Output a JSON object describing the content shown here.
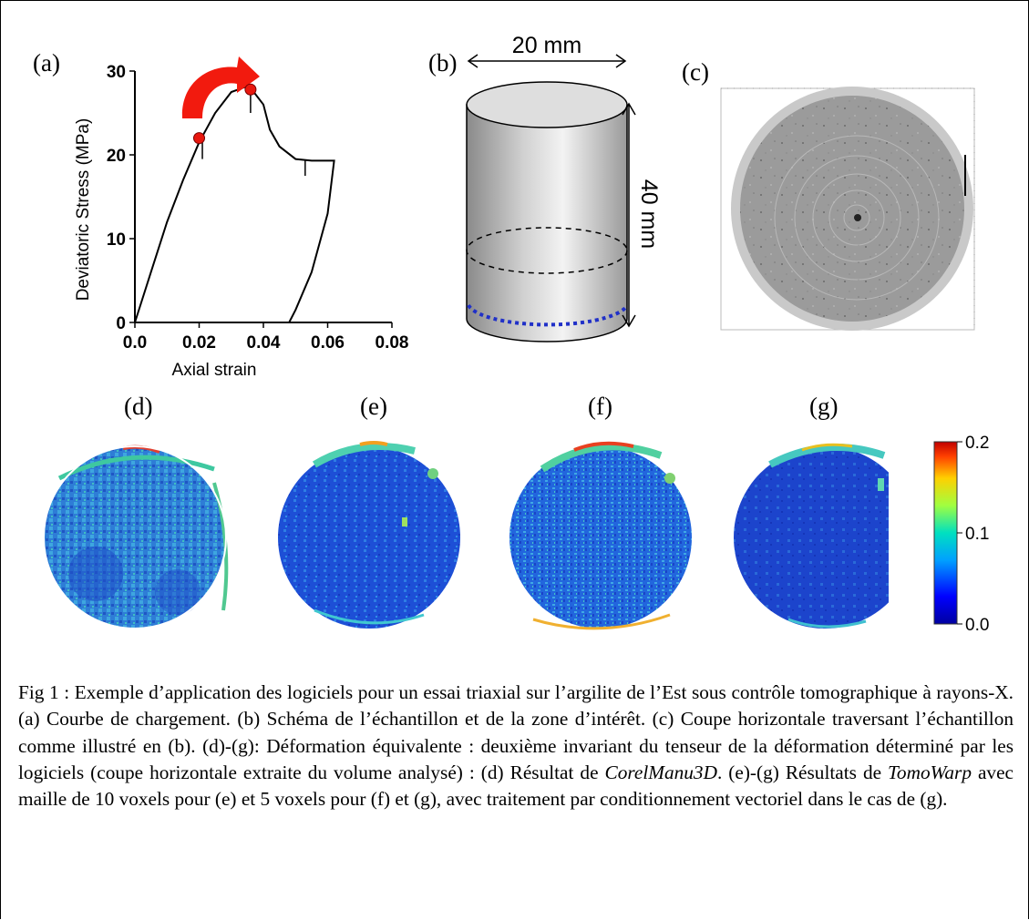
{
  "panels": {
    "a": "(a)",
    "b": "(b)",
    "c": "(c)",
    "d": "(d)",
    "e": "(e)",
    "f": "(f)",
    "g": "(g)"
  },
  "chart_data": {
    "type": "line",
    "title": "",
    "xlabel": "Axial strain",
    "ylabel": "Deviatoric Stress (MPa)",
    "xlim": [
      0.0,
      0.08
    ],
    "ylim": [
      0,
      30
    ],
    "xticks": [
      "0.0",
      "0.02",
      "0.04",
      "0.06",
      "0.08"
    ],
    "yticks": [
      "0",
      "10",
      "20",
      "30"
    ],
    "x": [
      0.0,
      0.005,
      0.01,
      0.015,
      0.02,
      0.025,
      0.03,
      0.035,
      0.037,
      0.04,
      0.042,
      0.045,
      0.05,
      0.055,
      0.06,
      0.062,
      0.06,
      0.055,
      0.05,
      0.048
    ],
    "y": [
      0,
      6,
      12,
      17,
      21.5,
      25,
      27.5,
      28.2,
      27.5,
      26,
      23,
      21,
      19.5,
      19.3,
      19.3,
      19.3,
      13,
      6,
      1.5,
      0
    ],
    "markers": [
      {
        "x": 0.02,
        "y": 22
      },
      {
        "x": 0.036,
        "y": 27.8
      }
    ],
    "colors": {
      "curve": "#000000",
      "marker": "#e8170e",
      "arrow": "#f21a0e"
    }
  },
  "specimen": {
    "width_label": "20 mm",
    "height_label": "40 mm"
  },
  "colorbar": {
    "ticks": [
      "0.2",
      "0.1",
      "0.0"
    ]
  },
  "caption": {
    "text1": "Fig 1 : Exemple d’application des logiciels pour un essai triaxial sur l’argilite de l’Est sous contrôle tomographique à rayons-X. (a) Courbe de chargement. (b) Schéma de l’échantillon et de la zone d’intérêt. (c) Coupe horizontale traversant l’échantillon comme illustré en (b). (d)-(g): Déformation équivalente : deuxième invariant du tenseur de la déformation déterminé par les logiciels (coupe horizontale extraite du volume analysé) : (d) Résultat de ",
    "italic1": "CorelManu3D",
    "text2": ". (e)-(g) Résultats de ",
    "italic2": "TomoWarp",
    "text3": " avec maille de 10 voxels pour (e) et 5 voxels pour (f) et (g), avec traitement par conditionnement vectoriel dans le cas de (g)."
  }
}
